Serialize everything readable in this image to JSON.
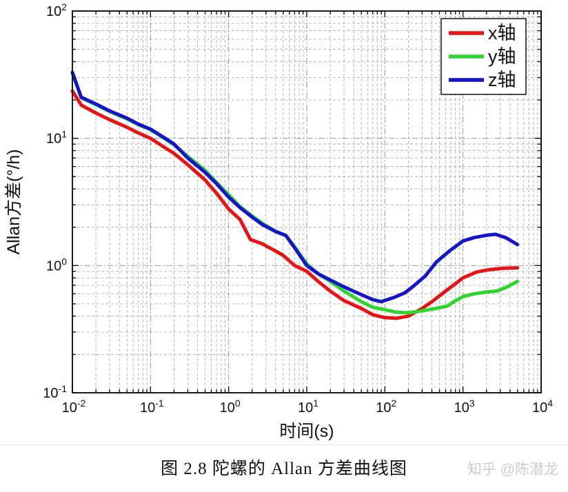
{
  "caption": "图 2.8 陀螺的 Allan 方差曲线图",
  "watermark": "知乎 @陈潜龙",
  "chart_data": {
    "type": "line",
    "title": "",
    "xlabel": "时间(s)",
    "ylabel": "Allan方差(°/h)",
    "xscale": "log",
    "yscale": "log",
    "xlim": [
      0.01,
      10000
    ],
    "ylim": [
      0.1,
      100
    ],
    "grid": "major dash-dot and minor dashed, both axes",
    "legend_position": "top-right",
    "x_axis": {
      "label": "时间(s)",
      "tick_exponents": [
        -2,
        -1,
        0,
        1,
        2,
        3,
        4
      ]
    },
    "y_axis": {
      "label": "Allan方差(°/h)",
      "tick_exponents": [
        -1,
        0,
        1,
        2
      ]
    },
    "series": [
      {
        "name": "x轴",
        "color": "#e81414",
        "points": [
          [
            0.01,
            23.5
          ],
          [
            0.013,
            18.2
          ],
          [
            0.02,
            15.8
          ],
          [
            0.03,
            14.0
          ],
          [
            0.05,
            12.2
          ],
          [
            0.07,
            11.0
          ],
          [
            0.1,
            10.0
          ],
          [
            0.15,
            8.5
          ],
          [
            0.2,
            7.6
          ],
          [
            0.3,
            6.2
          ],
          [
            0.5,
            4.7
          ],
          [
            0.7,
            3.7
          ],
          [
            1,
            2.78
          ],
          [
            1.4,
            2.3
          ],
          [
            1.9,
            1.6
          ],
          [
            2.7,
            1.48
          ],
          [
            4,
            1.3
          ],
          [
            5,
            1.2
          ],
          [
            7,
            1.0
          ],
          [
            10,
            0.9
          ],
          [
            14,
            0.75
          ],
          [
            20,
            0.63
          ],
          [
            30,
            0.53
          ],
          [
            50,
            0.46
          ],
          [
            70,
            0.41
          ],
          [
            100,
            0.39
          ],
          [
            140,
            0.385
          ],
          [
            200,
            0.4
          ],
          [
            300,
            0.46
          ],
          [
            400,
            0.52
          ],
          [
            600,
            0.63
          ],
          [
            800,
            0.72
          ],
          [
            1000,
            0.8
          ],
          [
            1500,
            0.89
          ],
          [
            2200,
            0.93
          ],
          [
            3200,
            0.95
          ],
          [
            5000,
            0.96
          ]
        ]
      },
      {
        "name": "y轴",
        "color": "#2ed52e",
        "points": [
          [
            0.01,
            32.5
          ],
          [
            0.013,
            20.8
          ],
          [
            0.02,
            18.4
          ],
          [
            0.03,
            16.2
          ],
          [
            0.05,
            14.2
          ],
          [
            0.07,
            12.8
          ],
          [
            0.1,
            11.7
          ],
          [
            0.15,
            10.0
          ],
          [
            0.2,
            8.9
          ],
          [
            0.3,
            7.2
          ],
          [
            0.5,
            5.6
          ],
          [
            0.7,
            4.5
          ],
          [
            1,
            3.6
          ],
          [
            1.4,
            2.9
          ],
          [
            2,
            2.45
          ],
          [
            2.7,
            2.15
          ],
          [
            4,
            1.85
          ],
          [
            5.4,
            1.73
          ],
          [
            7,
            1.4
          ],
          [
            10,
            1.03
          ],
          [
            14,
            0.86
          ],
          [
            20,
            0.75
          ],
          [
            30,
            0.63
          ],
          [
            50,
            0.52
          ],
          [
            70,
            0.47
          ],
          [
            100,
            0.45
          ],
          [
            140,
            0.43
          ],
          [
            200,
            0.425
          ],
          [
            300,
            0.44
          ],
          [
            450,
            0.46
          ],
          [
            630,
            0.48
          ],
          [
            800,
            0.53
          ],
          [
            1000,
            0.57
          ],
          [
            1400,
            0.6
          ],
          [
            2000,
            0.62
          ],
          [
            2700,
            0.63
          ],
          [
            3500,
            0.67
          ],
          [
            5000,
            0.75
          ]
        ]
      },
      {
        "name": "z轴",
        "color": "#1414cc",
        "points": [
          [
            0.01,
            33
          ],
          [
            0.013,
            21
          ],
          [
            0.02,
            18.6
          ],
          [
            0.03,
            16.4
          ],
          [
            0.05,
            14.4
          ],
          [
            0.07,
            12.9
          ],
          [
            0.1,
            11.8
          ],
          [
            0.15,
            10.1
          ],
          [
            0.2,
            9.0
          ],
          [
            0.3,
            7.0
          ],
          [
            0.5,
            5.4
          ],
          [
            0.7,
            4.4
          ],
          [
            1,
            3.45
          ],
          [
            1.4,
            2.85
          ],
          [
            2,
            2.4
          ],
          [
            2.7,
            2.1
          ],
          [
            4,
            1.85
          ],
          [
            5.4,
            1.72
          ],
          [
            7,
            1.38
          ],
          [
            10,
            1.0
          ],
          [
            14,
            0.86
          ],
          [
            20,
            0.77
          ],
          [
            30,
            0.68
          ],
          [
            50,
            0.59
          ],
          [
            70,
            0.54
          ],
          [
            90,
            0.52
          ],
          [
            130,
            0.56
          ],
          [
            180,
            0.61
          ],
          [
            233,
            0.69
          ],
          [
            330,
            0.83
          ],
          [
            460,
            1.07
          ],
          [
            680,
            1.31
          ],
          [
            1000,
            1.56
          ],
          [
            1400,
            1.66
          ],
          [
            2000,
            1.73
          ],
          [
            2600,
            1.76
          ],
          [
            3500,
            1.66
          ],
          [
            5000,
            1.46
          ]
        ]
      }
    ]
  }
}
